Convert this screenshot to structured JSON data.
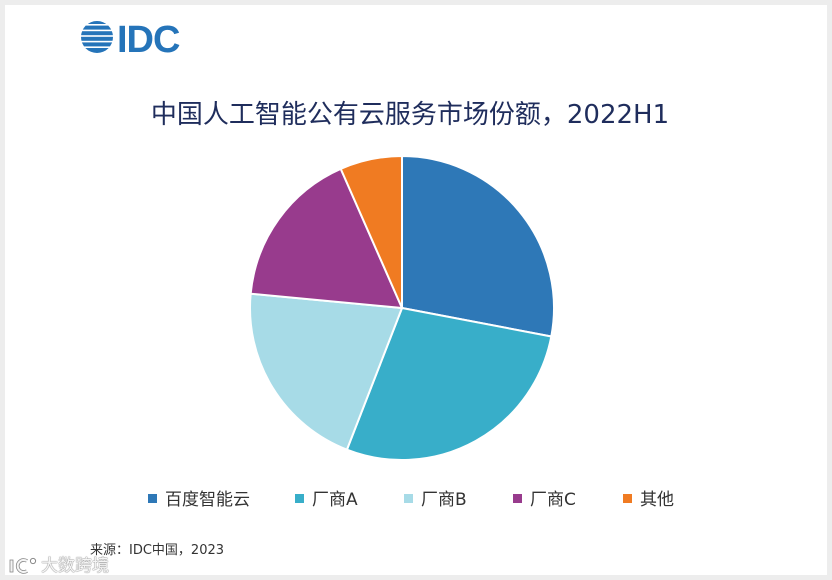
{
  "logo": {
    "text": "IDC",
    "color": "#2574b9"
  },
  "chart_data": {
    "type": "pie",
    "title": "中国人工智能公有云服务市场份额，2022H1",
    "categories": [
      "百度智能云",
      "厂商A",
      "厂商B",
      "厂商C",
      "其他"
    ],
    "values": [
      28.0,
      27.9,
      20.6,
      16.9,
      6.6
    ],
    "colors": [
      "#2e78b7",
      "#38aec9",
      "#a7dbe7",
      "#983b8d",
      "#f07b22"
    ],
    "legend": "bottom"
  },
  "source": "来源：IDC中国，2023",
  "watermark": {
    "text": "大数跨境"
  }
}
